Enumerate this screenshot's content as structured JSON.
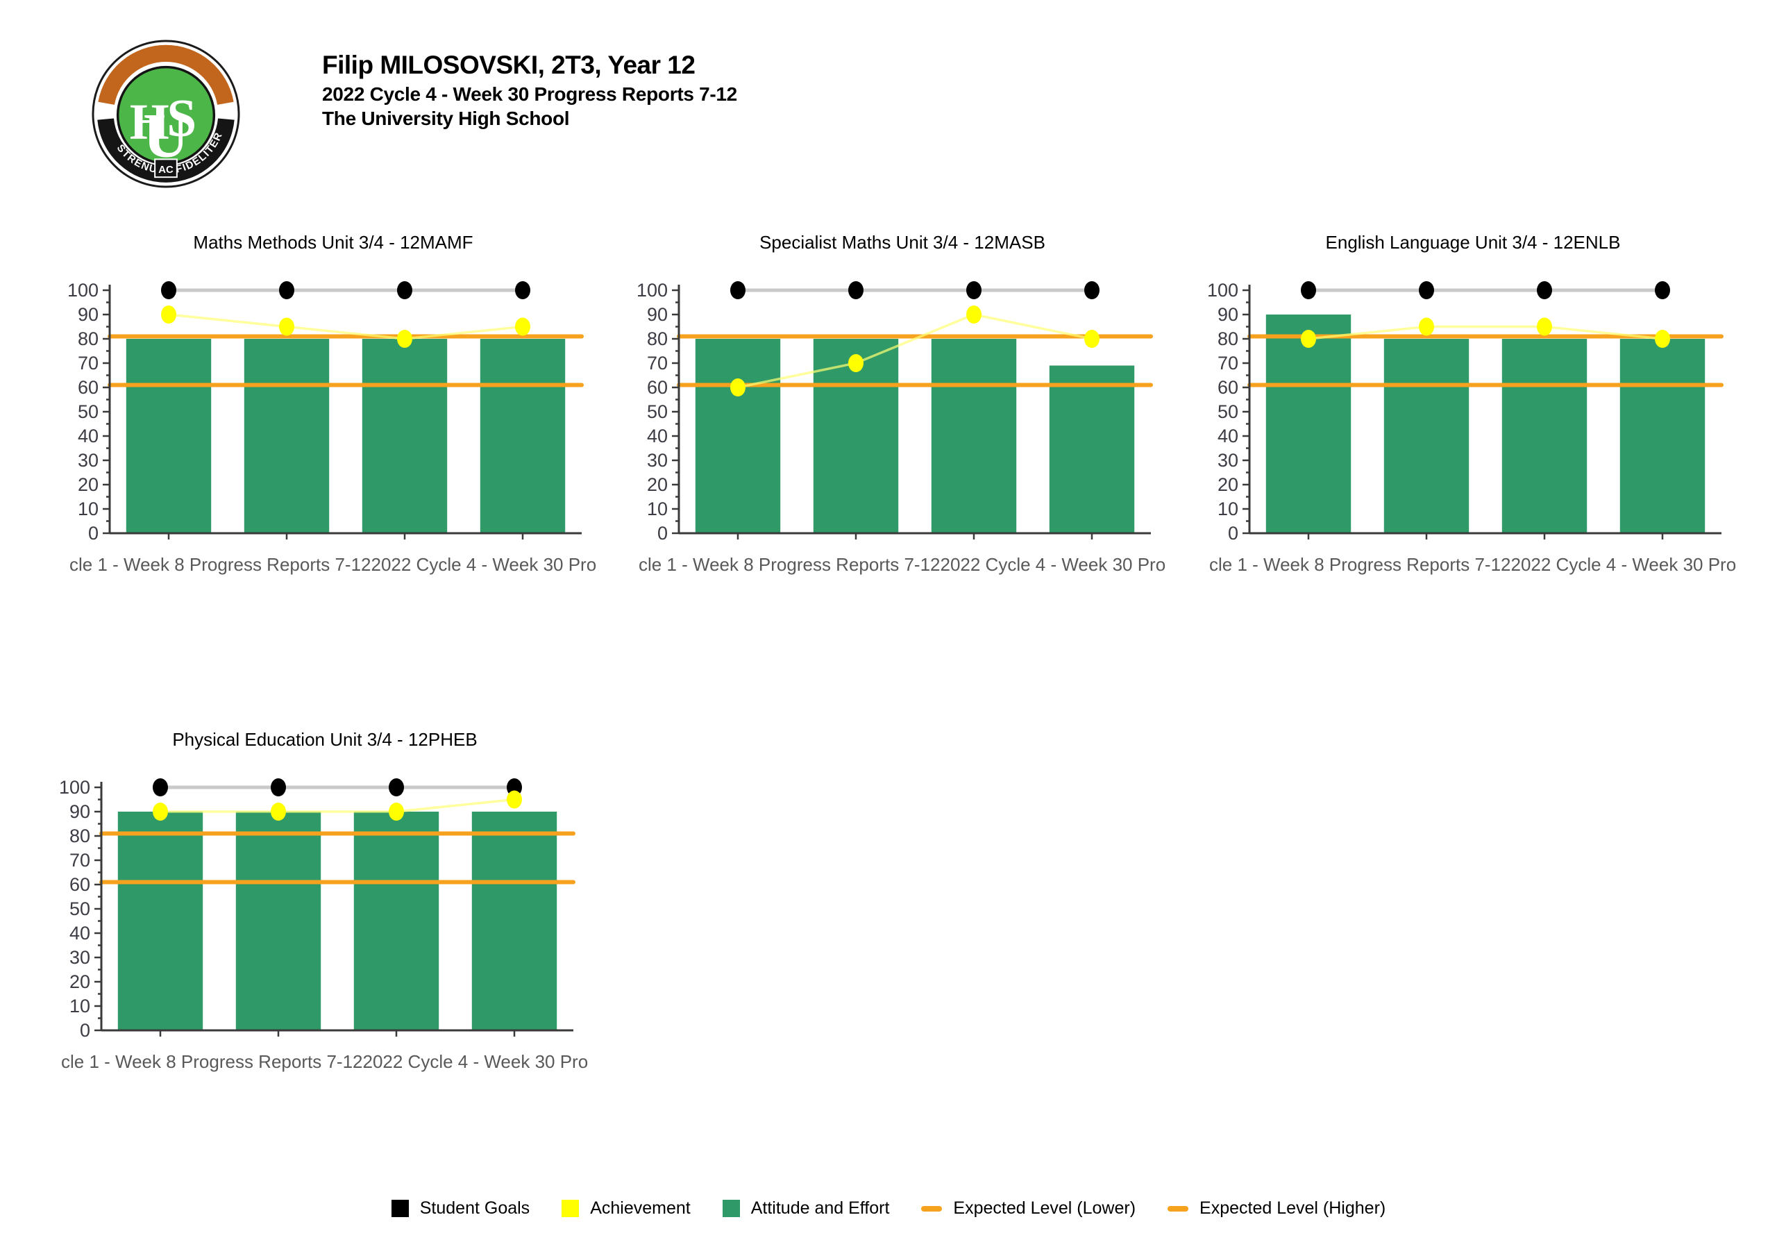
{
  "header": {
    "student_line": "Filip MILOSOVSKI, 2T3, Year 12",
    "report_line": "2022 Cycle 4 - Week 30 Progress Reports 7-12",
    "school_line": "The University High School",
    "logo": {
      "monogram": "UHS",
      "motto_left": "STRENUE",
      "motto_center": "AC",
      "motto_right": "FIDELITER",
      "ring_orange": "#C2661E",
      "inner_green": "#4CB648"
    }
  },
  "xaxis": {
    "visible_labels": [
      "cle 1 - Week 8 Progress Reports 7-12",
      "2022 Cycle 4 - Week 30 Progress"
    ]
  },
  "colors": {
    "bar_green": "#2F9A68",
    "achievement_yellow": "#FFFF00",
    "achievement_line": "#FFFF73",
    "goal_black": "#000000",
    "goal_line_gray": "#C9C9C9",
    "expected_orange": "#F7A21E",
    "axis": "#3a3a3a",
    "tick_text": "#3c3c44",
    "xlabel_text": "#595959"
  },
  "legend": {
    "items": [
      {
        "label": "Student Goals",
        "shape": "square",
        "color": "#000000"
      },
      {
        "label": "Achievement",
        "shape": "square",
        "color": "#FFFF00"
      },
      {
        "label": "Attitude and Effort",
        "shape": "square",
        "color": "#2F9A68"
      },
      {
        "label": "Expected Level (Lower)",
        "shape": "dash",
        "color": "#F7A21E"
      },
      {
        "label": "Expected Level (Higher)",
        "shape": "dash",
        "color": "#F7A21E"
      }
    ]
  },
  "chart_data": [
    {
      "type": "bar",
      "title": "Maths Methods Unit 3/4 - 12MAMF",
      "n_periods": 4,
      "x_tick_labels_visible": [
        "cle 1 - Week 8 Progress Reports 7-12",
        "2022 Cycle 4 - Week 30 Progress"
      ],
      "ylim": [
        0,
        100
      ],
      "y_tick_step": 10,
      "grid": false,
      "series": [
        {
          "name": "Student Goals",
          "type": "line",
          "marker_color": "#000000",
          "line_color": "#C9C9C9",
          "values": [
            100,
            100,
            100,
            100
          ]
        },
        {
          "name": "Achievement",
          "type": "line",
          "marker_color": "#FFFF00",
          "line_color": "#FFFF73",
          "values": [
            90,
            85,
            80,
            85
          ]
        },
        {
          "name": "Attitude and Effort",
          "type": "bar",
          "color": "#2F9A68",
          "values": [
            80,
            80,
            80,
            80
          ]
        }
      ],
      "reference_lines": [
        {
          "name": "Expected Level (Lower)",
          "value": 61,
          "color": "#F7A21E"
        },
        {
          "name": "Expected Level (Higher)",
          "value": 81,
          "color": "#F7A21E"
        }
      ]
    },
    {
      "type": "bar",
      "title": "Specialist Maths Unit 3/4 - 12MASB",
      "n_periods": 4,
      "x_tick_labels_visible": [
        "cle 1 - Week 8 Progress Reports 7-12",
        "2022 Cycle 4 - Week 30 Progress"
      ],
      "ylim": [
        0,
        100
      ],
      "y_tick_step": 10,
      "grid": false,
      "series": [
        {
          "name": "Student Goals",
          "type": "line",
          "marker_color": "#000000",
          "line_color": "#C9C9C9",
          "values": [
            100,
            100,
            100,
            100
          ]
        },
        {
          "name": "Achievement",
          "type": "line",
          "marker_color": "#FFFF00",
          "line_color": "#FFFF73",
          "values": [
            60,
            70,
            90,
            80
          ]
        },
        {
          "name": "Attitude and Effort",
          "type": "bar",
          "color": "#2F9A68",
          "values": [
            80,
            80,
            80,
            69
          ]
        }
      ],
      "reference_lines": [
        {
          "name": "Expected Level (Lower)",
          "value": 61,
          "color": "#F7A21E"
        },
        {
          "name": "Expected Level (Higher)",
          "value": 81,
          "color": "#F7A21E"
        }
      ]
    },
    {
      "type": "bar",
      "title": "English Language Unit 3/4 - 12ENLB",
      "n_periods": 4,
      "x_tick_labels_visible": [
        "cle 1 - Week 8 Progress Reports 7-12",
        "2022 Cycle 4 - Week 30 Progress"
      ],
      "ylim": [
        0,
        100
      ],
      "y_tick_step": 10,
      "grid": false,
      "series": [
        {
          "name": "Student Goals",
          "type": "line",
          "marker_color": "#000000",
          "line_color": "#C9C9C9",
          "values": [
            100,
            100,
            100,
            100
          ]
        },
        {
          "name": "Achievement",
          "type": "line",
          "marker_color": "#FFFF00",
          "line_color": "#FFFF73",
          "values": [
            80,
            85,
            85,
            80
          ]
        },
        {
          "name": "Attitude and Effort",
          "type": "bar",
          "color": "#2F9A68",
          "values": [
            90,
            80,
            80,
            80
          ]
        }
      ],
      "reference_lines": [
        {
          "name": "Expected Level (Lower)",
          "value": 61,
          "color": "#F7A21E"
        },
        {
          "name": "Expected Level (Higher)",
          "value": 81,
          "color": "#F7A21E"
        }
      ]
    },
    {
      "type": "bar",
      "title": "Physical Education Unit 3/4 - 12PHEB",
      "n_periods": 4,
      "x_tick_labels_visible": [
        "cle 1 - Week 8 Progress Reports 7-12",
        "2022 Cycle 4 - Week 30 Progress"
      ],
      "ylim": [
        0,
        100
      ],
      "y_tick_step": 10,
      "grid": false,
      "series": [
        {
          "name": "Student Goals",
          "type": "line",
          "marker_color": "#000000",
          "line_color": "#C9C9C9",
          "values": [
            100,
            100,
            100,
            100
          ]
        },
        {
          "name": "Achievement",
          "type": "line",
          "marker_color": "#FFFF00",
          "line_color": "#FFFF73",
          "values": [
            90,
            90,
            90,
            95
          ]
        },
        {
          "name": "Attitude and Effort",
          "type": "bar",
          "color": "#2F9A68",
          "values": [
            90,
            90,
            90,
            90
          ]
        }
      ],
      "reference_lines": [
        {
          "name": "Expected Level (Lower)",
          "value": 61,
          "color": "#F7A21E"
        },
        {
          "name": "Expected Level (Higher)",
          "value": 81,
          "color": "#F7A21E"
        }
      ]
    }
  ]
}
